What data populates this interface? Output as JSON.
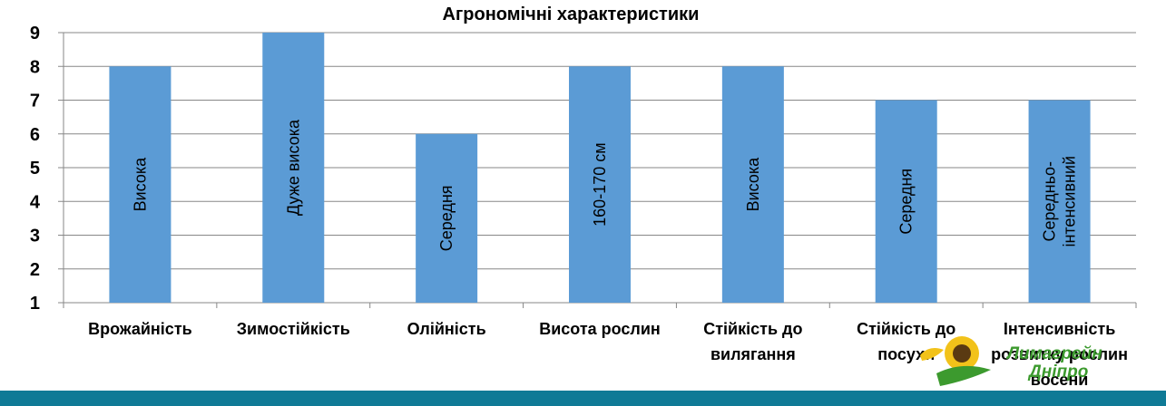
{
  "chart_data": {
    "type": "bar",
    "title": "Агрономічні характеристики",
    "categories": [
      [
        "Врожайність"
      ],
      [
        "Зимостійкість"
      ],
      [
        "Олійність"
      ],
      [
        "Висота рослин"
      ],
      [
        "Стійкість до",
        "вилягання"
      ],
      [
        "Стійкість до",
        "посухи"
      ],
      [
        "Інтенсивність",
        "розвитку рослин",
        "восени"
      ]
    ],
    "values": [
      8,
      9,
      6,
      8,
      8,
      7,
      7
    ],
    "data_labels": [
      [
        "Висока"
      ],
      [
        "Дуже висока"
      ],
      [
        "Середня"
      ],
      [
        "160-170 см"
      ],
      [
        "Висока"
      ],
      [
        "Середня"
      ],
      [
        "Середньо-",
        "інтенсивний"
      ]
    ],
    "ylim": [
      1,
      9
    ],
    "yticks": [
      1,
      2,
      3,
      4,
      5,
      6,
      7,
      8,
      9
    ],
    "grid": true,
    "bar_color": "#5B9BD5",
    "grid_color": "#878787"
  },
  "logo": {
    "lines": [
      "Лимагрейн",
      "Дніпро"
    ],
    "text_color": "#3C9A2E",
    "sun_color": "#F2C21A"
  },
  "footer": {
    "stripe_color": "#0F7A96"
  }
}
